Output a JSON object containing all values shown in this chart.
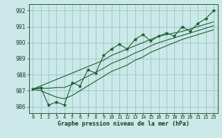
{
  "xlabel": "Graphe pression niveau de la mer (hPa)",
  "bg_color": "#cce8e8",
  "grid_color": "#99cccc",
  "line_color": "#1a5c2a",
  "xlim": [
    -0.5,
    23.5
  ],
  "ylim": [
    985.6,
    992.4
  ],
  "yticks": [
    986,
    987,
    988,
    989,
    990,
    991,
    992
  ],
  "hours": [
    0,
    1,
    2,
    3,
    4,
    5,
    6,
    7,
    8,
    9,
    10,
    11,
    12,
    13,
    14,
    15,
    16,
    17,
    18,
    19,
    20,
    21,
    22,
    23
  ],
  "pressure": [
    987.1,
    987.2,
    986.1,
    986.3,
    986.1,
    987.5,
    987.3,
    988.3,
    988.1,
    989.2,
    989.6,
    989.9,
    989.6,
    990.2,
    990.5,
    990.1,
    990.4,
    990.6,
    990.4,
    991.0,
    990.7,
    991.2,
    991.5,
    992.0
  ],
  "upper": [
    987.1,
    987.3,
    987.5,
    987.7,
    987.9,
    988.1,
    988.3,
    988.5,
    988.7,
    988.9,
    989.2,
    989.4,
    989.6,
    989.8,
    990.0,
    990.2,
    990.4,
    990.5,
    990.6,
    990.7,
    990.85,
    991.0,
    991.15,
    991.3
  ],
  "lower": [
    987.1,
    987.0,
    986.8,
    986.6,
    986.5,
    986.7,
    987.0,
    987.3,
    987.6,
    987.9,
    988.2,
    988.4,
    988.6,
    988.9,
    989.1,
    989.4,
    989.6,
    989.8,
    990.0,
    990.2,
    990.35,
    990.5,
    990.65,
    990.8
  ],
  "mid": [
    987.1,
    987.15,
    987.15,
    987.2,
    987.2,
    987.4,
    987.65,
    987.9,
    988.15,
    988.4,
    988.7,
    988.9,
    989.1,
    989.35,
    989.55,
    989.8,
    990.0,
    990.15,
    990.3,
    990.45,
    990.6,
    990.75,
    990.9,
    991.05
  ]
}
